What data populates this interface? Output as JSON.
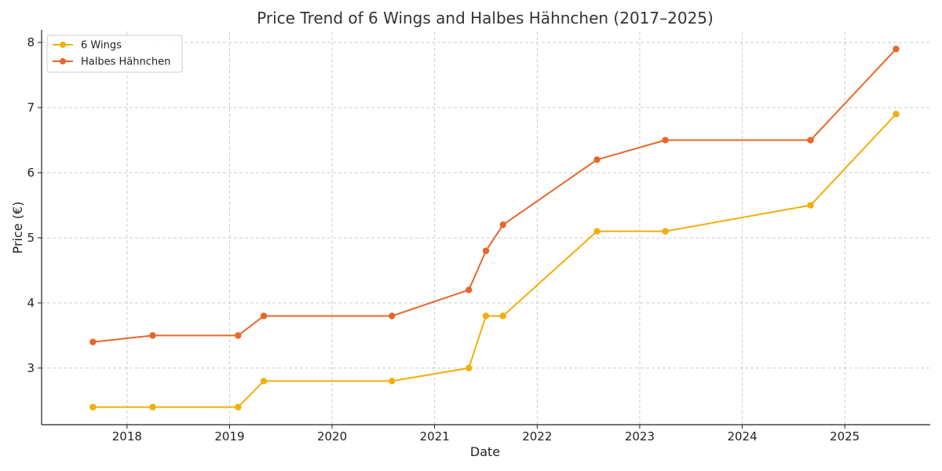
{
  "chart_data": {
    "type": "line",
    "title": "Price Trend of 6 Wings and Halbes Hähnchen (2017–2025)",
    "xlabel": "Date",
    "ylabel": "Price (€)",
    "xlim": [
      "2017-03-01",
      "2025-11-01"
    ],
    "ylim": [
      2.13,
      8.17
    ],
    "x_ticks": [
      "2018",
      "2019",
      "2020",
      "2021",
      "2022",
      "2023",
      "2024",
      "2025"
    ],
    "y_ticks": [
      "3",
      "4",
      "5",
      "6",
      "7",
      "8"
    ],
    "grid": true,
    "legend_position": "upper left",
    "series": [
      {
        "name": "6 Wings",
        "color": "#F2AE0C",
        "points": [
          {
            "x": "2017-09-01",
            "y": 2.4
          },
          {
            "x": "2018-04-01",
            "y": 2.4
          },
          {
            "x": "2019-02-01",
            "y": 2.4
          },
          {
            "x": "2019-05-01",
            "y": 2.8
          },
          {
            "x": "2020-08-01",
            "y": 2.8
          },
          {
            "x": "2021-05-01",
            "y": 3.0
          },
          {
            "x": "2021-07-01",
            "y": 3.8
          },
          {
            "x": "2021-09-01",
            "y": 3.8
          },
          {
            "x": "2022-08-01",
            "y": 5.1
          },
          {
            "x": "2023-04-01",
            "y": 5.1
          },
          {
            "x": "2024-09-01",
            "y": 5.5
          },
          {
            "x": "2025-07-01",
            "y": 6.9
          }
        ]
      },
      {
        "name": "Halbes Hähnchen",
        "color": "#E8662A",
        "points": [
          {
            "x": "2017-09-01",
            "y": 3.4
          },
          {
            "x": "2018-04-01",
            "y": 3.5
          },
          {
            "x": "2019-02-01",
            "y": 3.5
          },
          {
            "x": "2019-05-01",
            "y": 3.8
          },
          {
            "x": "2020-08-01",
            "y": 3.8
          },
          {
            "x": "2021-05-01",
            "y": 4.2
          },
          {
            "x": "2021-07-01",
            "y": 4.8
          },
          {
            "x": "2021-09-01",
            "y": 5.2
          },
          {
            "x": "2022-08-01",
            "y": 6.2
          },
          {
            "x": "2023-04-01",
            "y": 6.5
          },
          {
            "x": "2024-09-01",
            "y": 6.5
          },
          {
            "x": "2025-07-01",
            "y": 7.9
          }
        ]
      }
    ]
  }
}
